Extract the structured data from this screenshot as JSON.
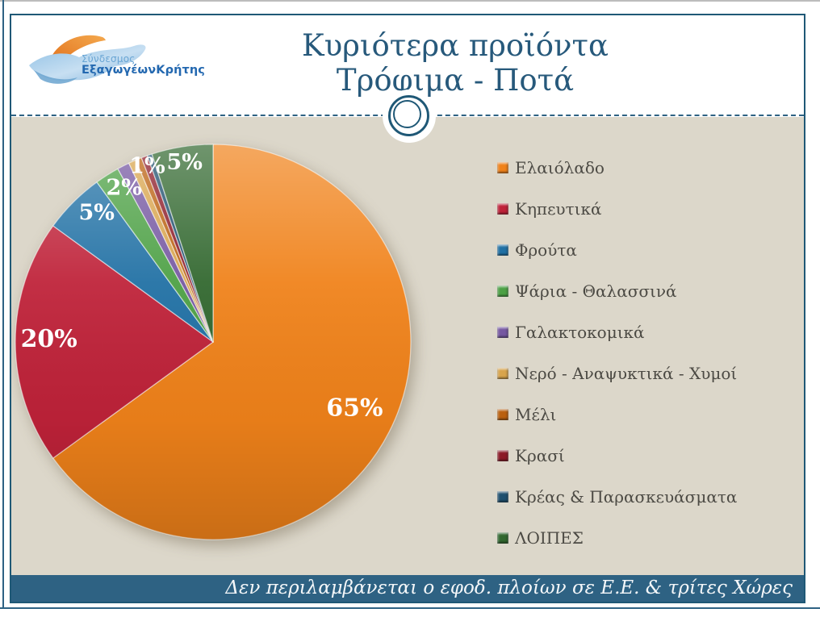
{
  "slide": {
    "title_line1": "Κυριότερα προϊόντα",
    "title_line2": "Τρόφιμα - Ποτά",
    "footer_note": "Δεν περιλαμβάνεται ο εφοδ. πλοίων σε Ε.Ε. & τρίτες Χώρες"
  },
  "logo": {
    "line1": "Σύνδεσμος",
    "line2_part1": "Εξαγωγέων",
    "line2_part2": "Κρήτης"
  },
  "colors": {
    "title": "#27597b",
    "frame": "#1f5876",
    "content_bg": "#dcd7ca",
    "footer_bar": "#2e6283",
    "legend_text": "#4c4a44"
  },
  "chart_data": {
    "type": "pie",
    "title": "Κυριότερα προϊόντα Τρόφιμα - Ποτά",
    "start_angle_deg": 0,
    "direction": "clockwise",
    "legend_position": "right",
    "slices": [
      {
        "label": "Ελαιόλαδο",
        "value": 65,
        "color": "#f0821a",
        "data_label": "65%",
        "label_angle": 115,
        "label_r": 0.79,
        "label_size": 30
      },
      {
        "label": "Κηπευτικά",
        "value": 20,
        "color": "#bf2239",
        "data_label": "20%",
        "label_angle": 271,
        "label_r": 0.83,
        "label_size": 30
      },
      {
        "label": "Φρούτα",
        "value": 5,
        "color": "#2070a4",
        "data_label": "5%",
        "label_angle": 318,
        "label_r": 0.88,
        "label_size": 27
      },
      {
        "label": "Ψάρια - Θαλασσινά",
        "value": 2,
        "color": "#4ca044",
        "data_label": "2%",
        "label_angle": 330,
        "label_r": 0.9,
        "label_size": 27
      },
      {
        "label": "Γαλακτοκομικά",
        "value": 1,
        "color": "#7557a1",
        "data_label": "1%",
        "label_angle": 339.5,
        "label_r": 0.95,
        "label_size": 27
      },
      {
        "label": "Νερό - Αναψυκτικά - Χυμοί",
        "value": 0.6,
        "color": "#d8a44c",
        "data_label": ""
      },
      {
        "label": "Μέλι",
        "value": 0.5,
        "color": "#ba600f",
        "data_label": ""
      },
      {
        "label": "Κρασί",
        "value": 0.5,
        "color": "#8c1a27",
        "data_label": ""
      },
      {
        "label": "Κρέας & Παρασκευάσματα",
        "value": 0.4,
        "color": "#1e4f6e",
        "data_label": ""
      },
      {
        "label": "ΛΟΙΠΕΣ",
        "value": 5,
        "color": "#31672e",
        "data_label": "5%",
        "label_angle": 351,
        "label_r": 0.92,
        "label_size": 27
      }
    ]
  }
}
